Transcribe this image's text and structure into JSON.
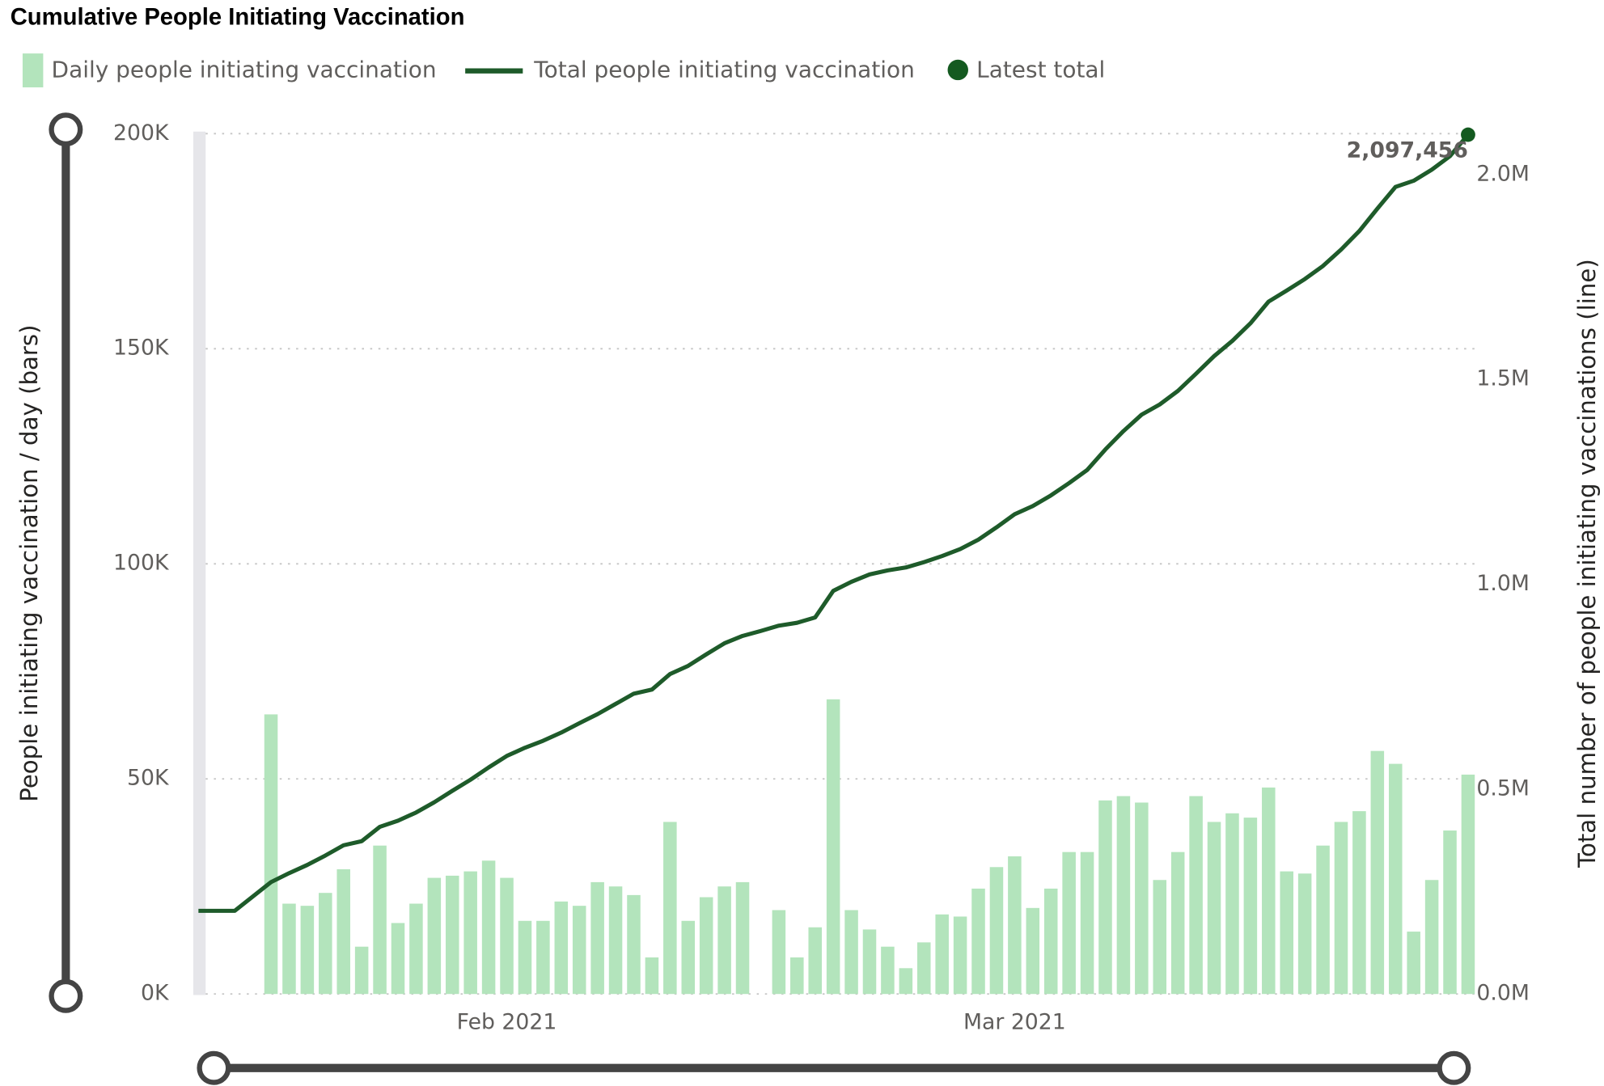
{
  "chart_data": {
    "type": "combo",
    "title": "Cumulative People Initiating Vaccination",
    "y_label": "People initiating vaccination / day (bars)",
    "y2_label": "Total number of people initiating vaccinations (line)",
    "categories": [
      null,
      null,
      null,
      null,
      null,
      null,
      null,
      null,
      null,
      null,
      null,
      null,
      null,
      null,
      null,
      null,
      null,
      "Feb 2021",
      null,
      null,
      null,
      null,
      null,
      null,
      null,
      null,
      null,
      null,
      null,
      null,
      null,
      null,
      null,
      null,
      null,
      null,
      null,
      null,
      null,
      null,
      null,
      null,
      null,
      null,
      null,
      "Mar 2021",
      null,
      null,
      null,
      null,
      null,
      null,
      null,
      null,
      null,
      null,
      null,
      null,
      null,
      null,
      null,
      null,
      null,
      null,
      null,
      null,
      null,
      null,
      null,
      null,
      null
    ],
    "ylim": [
      0,
      200000
    ],
    "yticks": [
      {
        "value": 0,
        "label": "0K"
      },
      {
        "value": 50000,
        "label": "50K"
      },
      {
        "value": 100000,
        "label": "100K"
      },
      {
        "value": 150000,
        "label": "150K"
      },
      {
        "value": 200000,
        "label": "200K"
      }
    ],
    "y2lim": [
      0,
      2100000
    ],
    "y2ticks": [
      {
        "value": 0,
        "label": "0.0M"
      },
      {
        "value": 500000,
        "label": "0.5M"
      },
      {
        "value": 1000000,
        "label": "1.0M"
      },
      {
        "value": 1500000,
        "label": "1.5M"
      },
      {
        "value": 2000000,
        "label": "2.0M"
      }
    ],
    "grid": true,
    "series": [
      {
        "name": "Daily people initiating vaccination",
        "type": "bar",
        "color": "#b3e4bc",
        "values": [
          null,
          null,
          null,
          null,
          65000,
          21000,
          20500,
          23500,
          29000,
          11000,
          34500,
          16500,
          21000,
          27000,
          27500,
          28500,
          31000,
          27000,
          17000,
          17000,
          21500,
          20500,
          26000,
          25000,
          23000,
          8500,
          40000,
          17000,
          22500,
          25000,
          26000,
          null,
          19500,
          8500,
          15500,
          68500,
          19500,
          15000,
          11000,
          6000,
          12000,
          18500,
          18000,
          24500,
          29500,
          32000,
          20000,
          24500,
          33000,
          33000,
          45000,
          46000,
          44500,
          26500,
          33000,
          46000,
          40000,
          42000,
          41000,
          48000,
          28500,
          28000,
          34500,
          40000,
          42500,
          56500,
          53500,
          14500,
          26500,
          38000,
          51000
        ]
      },
      {
        "name": "Total people initiating vaccination",
        "type": "line",
        "axis": "y2",
        "color": "#1e5b2a",
        "values": [
          203000,
          203000,
          203000,
          238000,
          273000,
          295000,
          315000,
          338000,
          363000,
          373000,
          408000,
          423000,
          443000,
          468000,
          496000,
          523000,
          553000,
          581000,
          601000,
          618000,
          638000,
          661000,
          683000,
          708000,
          733000,
          743000,
          781000,
          801000,
          829000,
          856000,
          874000,
          886000,
          899000,
          906000,
          919000,
          984000,
          1006000,
          1024000,
          1034000,
          1041000,
          1054000,
          1069000,
          1086000,
          1109000,
          1139000,
          1171000,
          1191000,
          1217000,
          1247000,
          1279000,
          1329000,
          1374000,
          1414000,
          1439000,
          1472000,
          1514000,
          1557000,
          1594000,
          1637000,
          1690000,
          1717000,
          1745000,
          1777000,
          1817000,
          1862000,
          1917000,
          1970000,
          1985000,
          2012000,
          2045000,
          2097456
        ]
      },
      {
        "name": "Latest total",
        "type": "dot",
        "axis": "y2",
        "color": "#145a20",
        "values": [
          null,
          null,
          null,
          null,
          null,
          null,
          null,
          null,
          null,
          null,
          null,
          null,
          null,
          null,
          null,
          null,
          null,
          null,
          null,
          null,
          null,
          null,
          null,
          null,
          null,
          null,
          null,
          null,
          null,
          null,
          null,
          null,
          null,
          null,
          null,
          null,
          null,
          null,
          null,
          null,
          null,
          null,
          null,
          null,
          null,
          null,
          null,
          null,
          null,
          null,
          null,
          null,
          null,
          null,
          null,
          null,
          null,
          null,
          null,
          null,
          null,
          null,
          null,
          null,
          null,
          null,
          null,
          null,
          null,
          null,
          2097456
        ],
        "value_labels": [
          null,
          null,
          null,
          null,
          null,
          null,
          null,
          null,
          null,
          null,
          null,
          null,
          null,
          null,
          null,
          null,
          null,
          null,
          null,
          null,
          null,
          null,
          null,
          null,
          null,
          null,
          null,
          null,
          null,
          null,
          null,
          null,
          null,
          null,
          null,
          null,
          null,
          null,
          null,
          null,
          null,
          null,
          null,
          null,
          null,
          null,
          null,
          null,
          null,
          null,
          null,
          null,
          null,
          null,
          null,
          null,
          null,
          null,
          null,
          null,
          null,
          null,
          null,
          null,
          null,
          null,
          null,
          null,
          null,
          null,
          "2,097,456"
        ]
      }
    ]
  }
}
